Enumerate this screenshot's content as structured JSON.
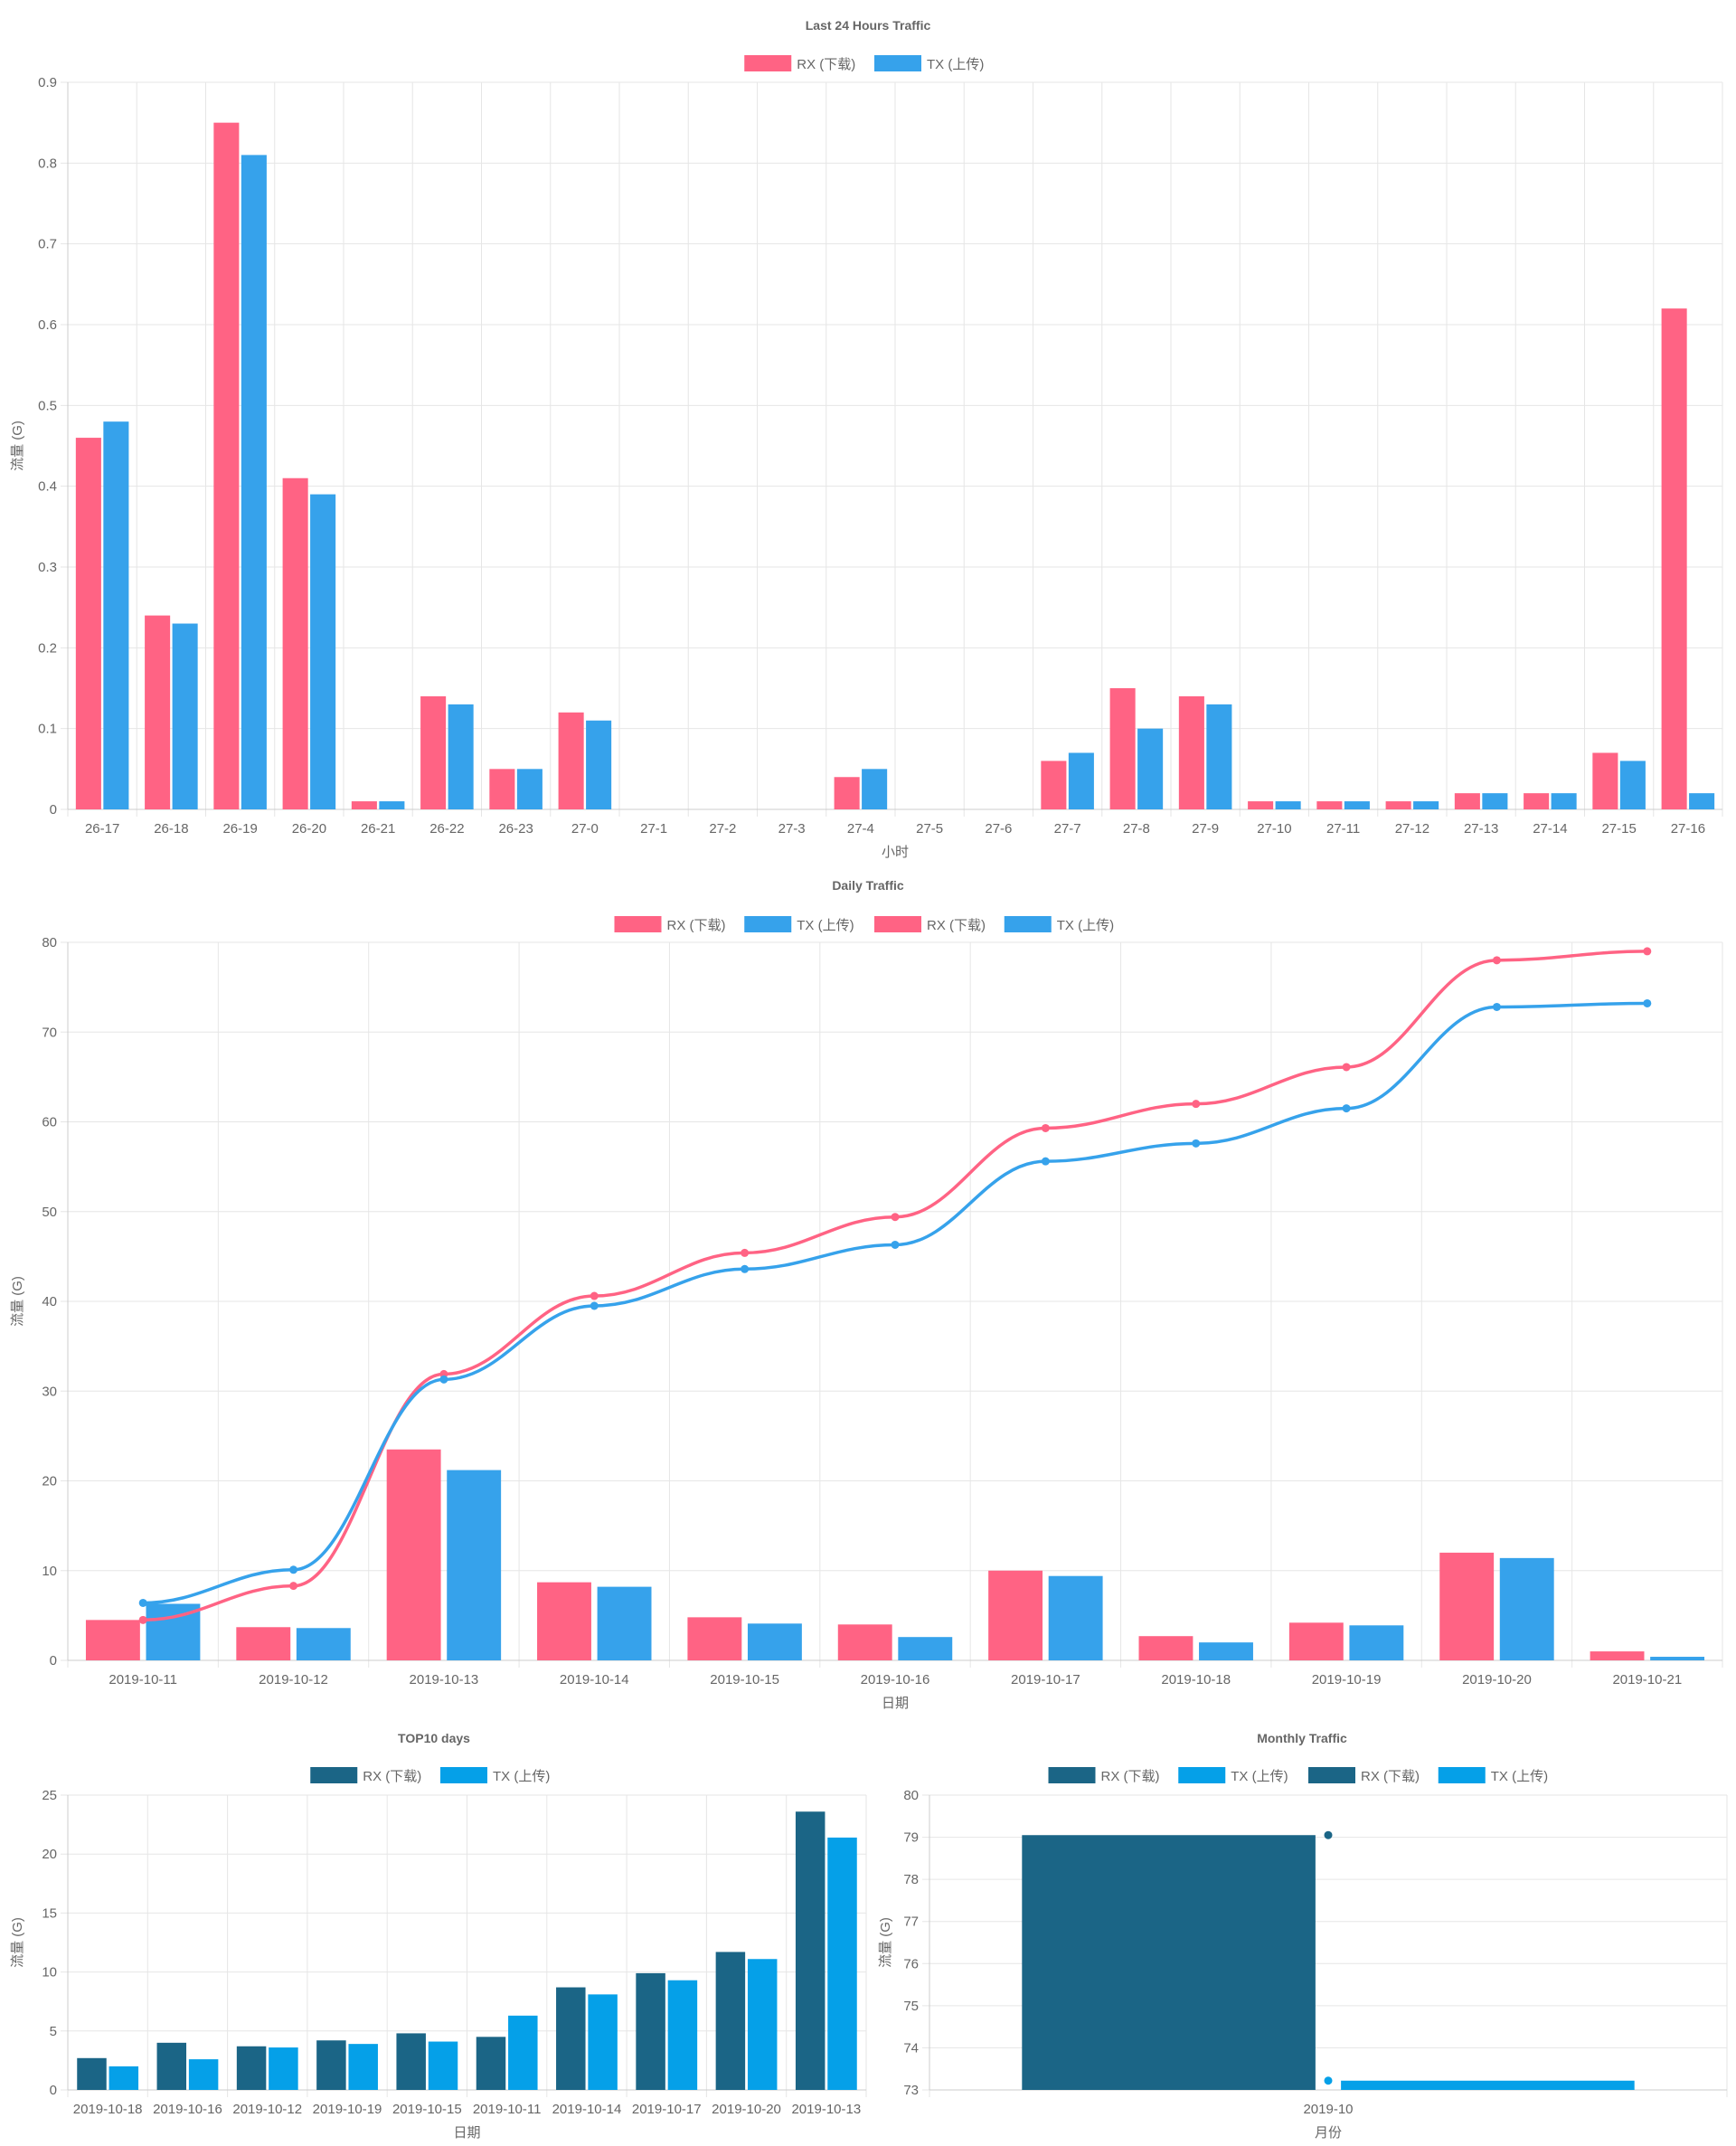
{
  "colors": {
    "rx_pink": "#ff6384",
    "tx_blue": "#36a2eb",
    "rx_dark": "#1b6586",
    "tx_bright": "#05a0e8"
  },
  "chart_data": [
    {
      "id": "hourly",
      "type": "bar",
      "title": "Last 24 Hours Traffic",
      "xlabel": "小时",
      "ylabel": "流量 (G)",
      "ylim": [
        0,
        0.9
      ],
      "yticks": [
        0,
        0.1,
        0.2,
        0.3,
        0.4,
        0.5,
        0.6,
        0.7,
        0.8,
        0.9
      ],
      "grid": true,
      "legend_position": "top",
      "categories": [
        "26-17",
        "26-18",
        "26-19",
        "26-20",
        "26-21",
        "26-22",
        "26-23",
        "27-0",
        "27-1",
        "27-2",
        "27-3",
        "27-4",
        "27-5",
        "27-6",
        "27-7",
        "27-8",
        "27-9",
        "27-10",
        "27-11",
        "27-12",
        "27-13",
        "27-14",
        "27-15",
        "27-16"
      ],
      "series": [
        {
          "name": "RX (下载)",
          "color": "#ff6384",
          "values": [
            0.46,
            0.24,
            0.85,
            0.41,
            0.01,
            0.14,
            0.05,
            0.12,
            0,
            0,
            0,
            0.04,
            0,
            0,
            0.06,
            0.15,
            0.14,
            0.01,
            0.01,
            0.01,
            0.02,
            0.02,
            0.07,
            0.62
          ]
        },
        {
          "name": "TX (上传)",
          "color": "#36a2eb",
          "values": [
            0.48,
            0.23,
            0.81,
            0.39,
            0.01,
            0.13,
            0.05,
            0.11,
            0,
            0,
            0,
            0.05,
            0,
            0,
            0.07,
            0.1,
            0.13,
            0.01,
            0.01,
            0.01,
            0.02,
            0.02,
            0.06,
            0.02
          ]
        }
      ]
    },
    {
      "id": "daily",
      "type": "bar",
      "title": "Daily Traffic",
      "xlabel": "日期",
      "ylabel": "流量 (G)",
      "ylim": [
        0,
        80
      ],
      "yticks": [
        0,
        10,
        20,
        30,
        40,
        50,
        60,
        70,
        80
      ],
      "grid": true,
      "legend_position": "top",
      "categories": [
        "2019-10-11",
        "2019-10-12",
        "2019-10-13",
        "2019-10-14",
        "2019-10-15",
        "2019-10-16",
        "2019-10-17",
        "2019-10-18",
        "2019-10-19",
        "2019-10-20",
        "2019-10-21"
      ],
      "series": [
        {
          "name": "RX (下载)",
          "kind": "bar",
          "color": "#ff6384",
          "values": [
            4.5,
            3.7,
            23.5,
            8.7,
            4.8,
            4.0,
            10.0,
            2.7,
            4.2,
            12.0,
            1.0
          ]
        },
        {
          "name": "TX (上传)",
          "kind": "bar",
          "color": "#36a2eb",
          "values": [
            6.3,
            3.6,
            21.2,
            8.2,
            4.1,
            2.6,
            9.4,
            2.0,
            3.9,
            11.4,
            0.4
          ]
        },
        {
          "name": "RX (下载)",
          "kind": "line",
          "color": "#ff6384",
          "values": [
            4.5,
            8.3,
            31.9,
            40.6,
            45.4,
            49.4,
            59.3,
            62.0,
            66.1,
            78.0,
            79.0
          ]
        },
        {
          "name": "TX (上传)",
          "kind": "line",
          "color": "#36a2eb",
          "values": [
            6.4,
            10.1,
            31.3,
            39.5,
            43.6,
            46.3,
            55.6,
            57.6,
            61.5,
            72.8,
            73.2
          ]
        }
      ]
    },
    {
      "id": "top10",
      "type": "bar",
      "title": "TOP10 days",
      "xlabel": "日期",
      "ylabel": "流量 (G)",
      "ylim": [
        0,
        25
      ],
      "yticks": [
        0,
        5,
        10,
        15,
        20,
        25
      ],
      "grid": true,
      "legend_position": "top",
      "categories": [
        "2019-10-18",
        "2019-10-16",
        "2019-10-12",
        "2019-10-19",
        "2019-10-15",
        "2019-10-11",
        "2019-10-14",
        "2019-10-17",
        "2019-10-20",
        "2019-10-13"
      ],
      "series": [
        {
          "name": "RX (下载)",
          "color": "#1b6586",
          "values": [
            2.7,
            4.0,
            3.7,
            4.2,
            4.8,
            4.5,
            8.7,
            9.9,
            11.7,
            23.6
          ]
        },
        {
          "name": "TX (上传)",
          "color": "#05a0e8",
          "values": [
            2.0,
            2.6,
            3.6,
            3.9,
            4.1,
            6.3,
            8.1,
            9.3,
            11.1,
            21.4
          ]
        }
      ]
    },
    {
      "id": "monthly",
      "type": "bar",
      "title": "Monthly Traffic",
      "xlabel": "月份",
      "ylabel": "流量 (G)",
      "ylim": [
        73,
        80
      ],
      "yticks": [
        73,
        74,
        75,
        76,
        77,
        78,
        79,
        80
      ],
      "grid": true,
      "legend_position": "top",
      "categories": [
        "2019-10"
      ],
      "series": [
        {
          "name": "RX (下载)",
          "kind": "bar",
          "color": "#1b6586",
          "values": [
            79.05
          ]
        },
        {
          "name": "TX (上传)",
          "kind": "bar",
          "color": "#05a0e8",
          "values": [
            73.22
          ]
        },
        {
          "name": "RX (下载)",
          "kind": "point",
          "color": "#1b6586",
          "values": [
            79.05
          ]
        },
        {
          "name": "TX (上传)",
          "kind": "point",
          "color": "#05a0e8",
          "values": [
            73.22
          ]
        }
      ]
    }
  ]
}
